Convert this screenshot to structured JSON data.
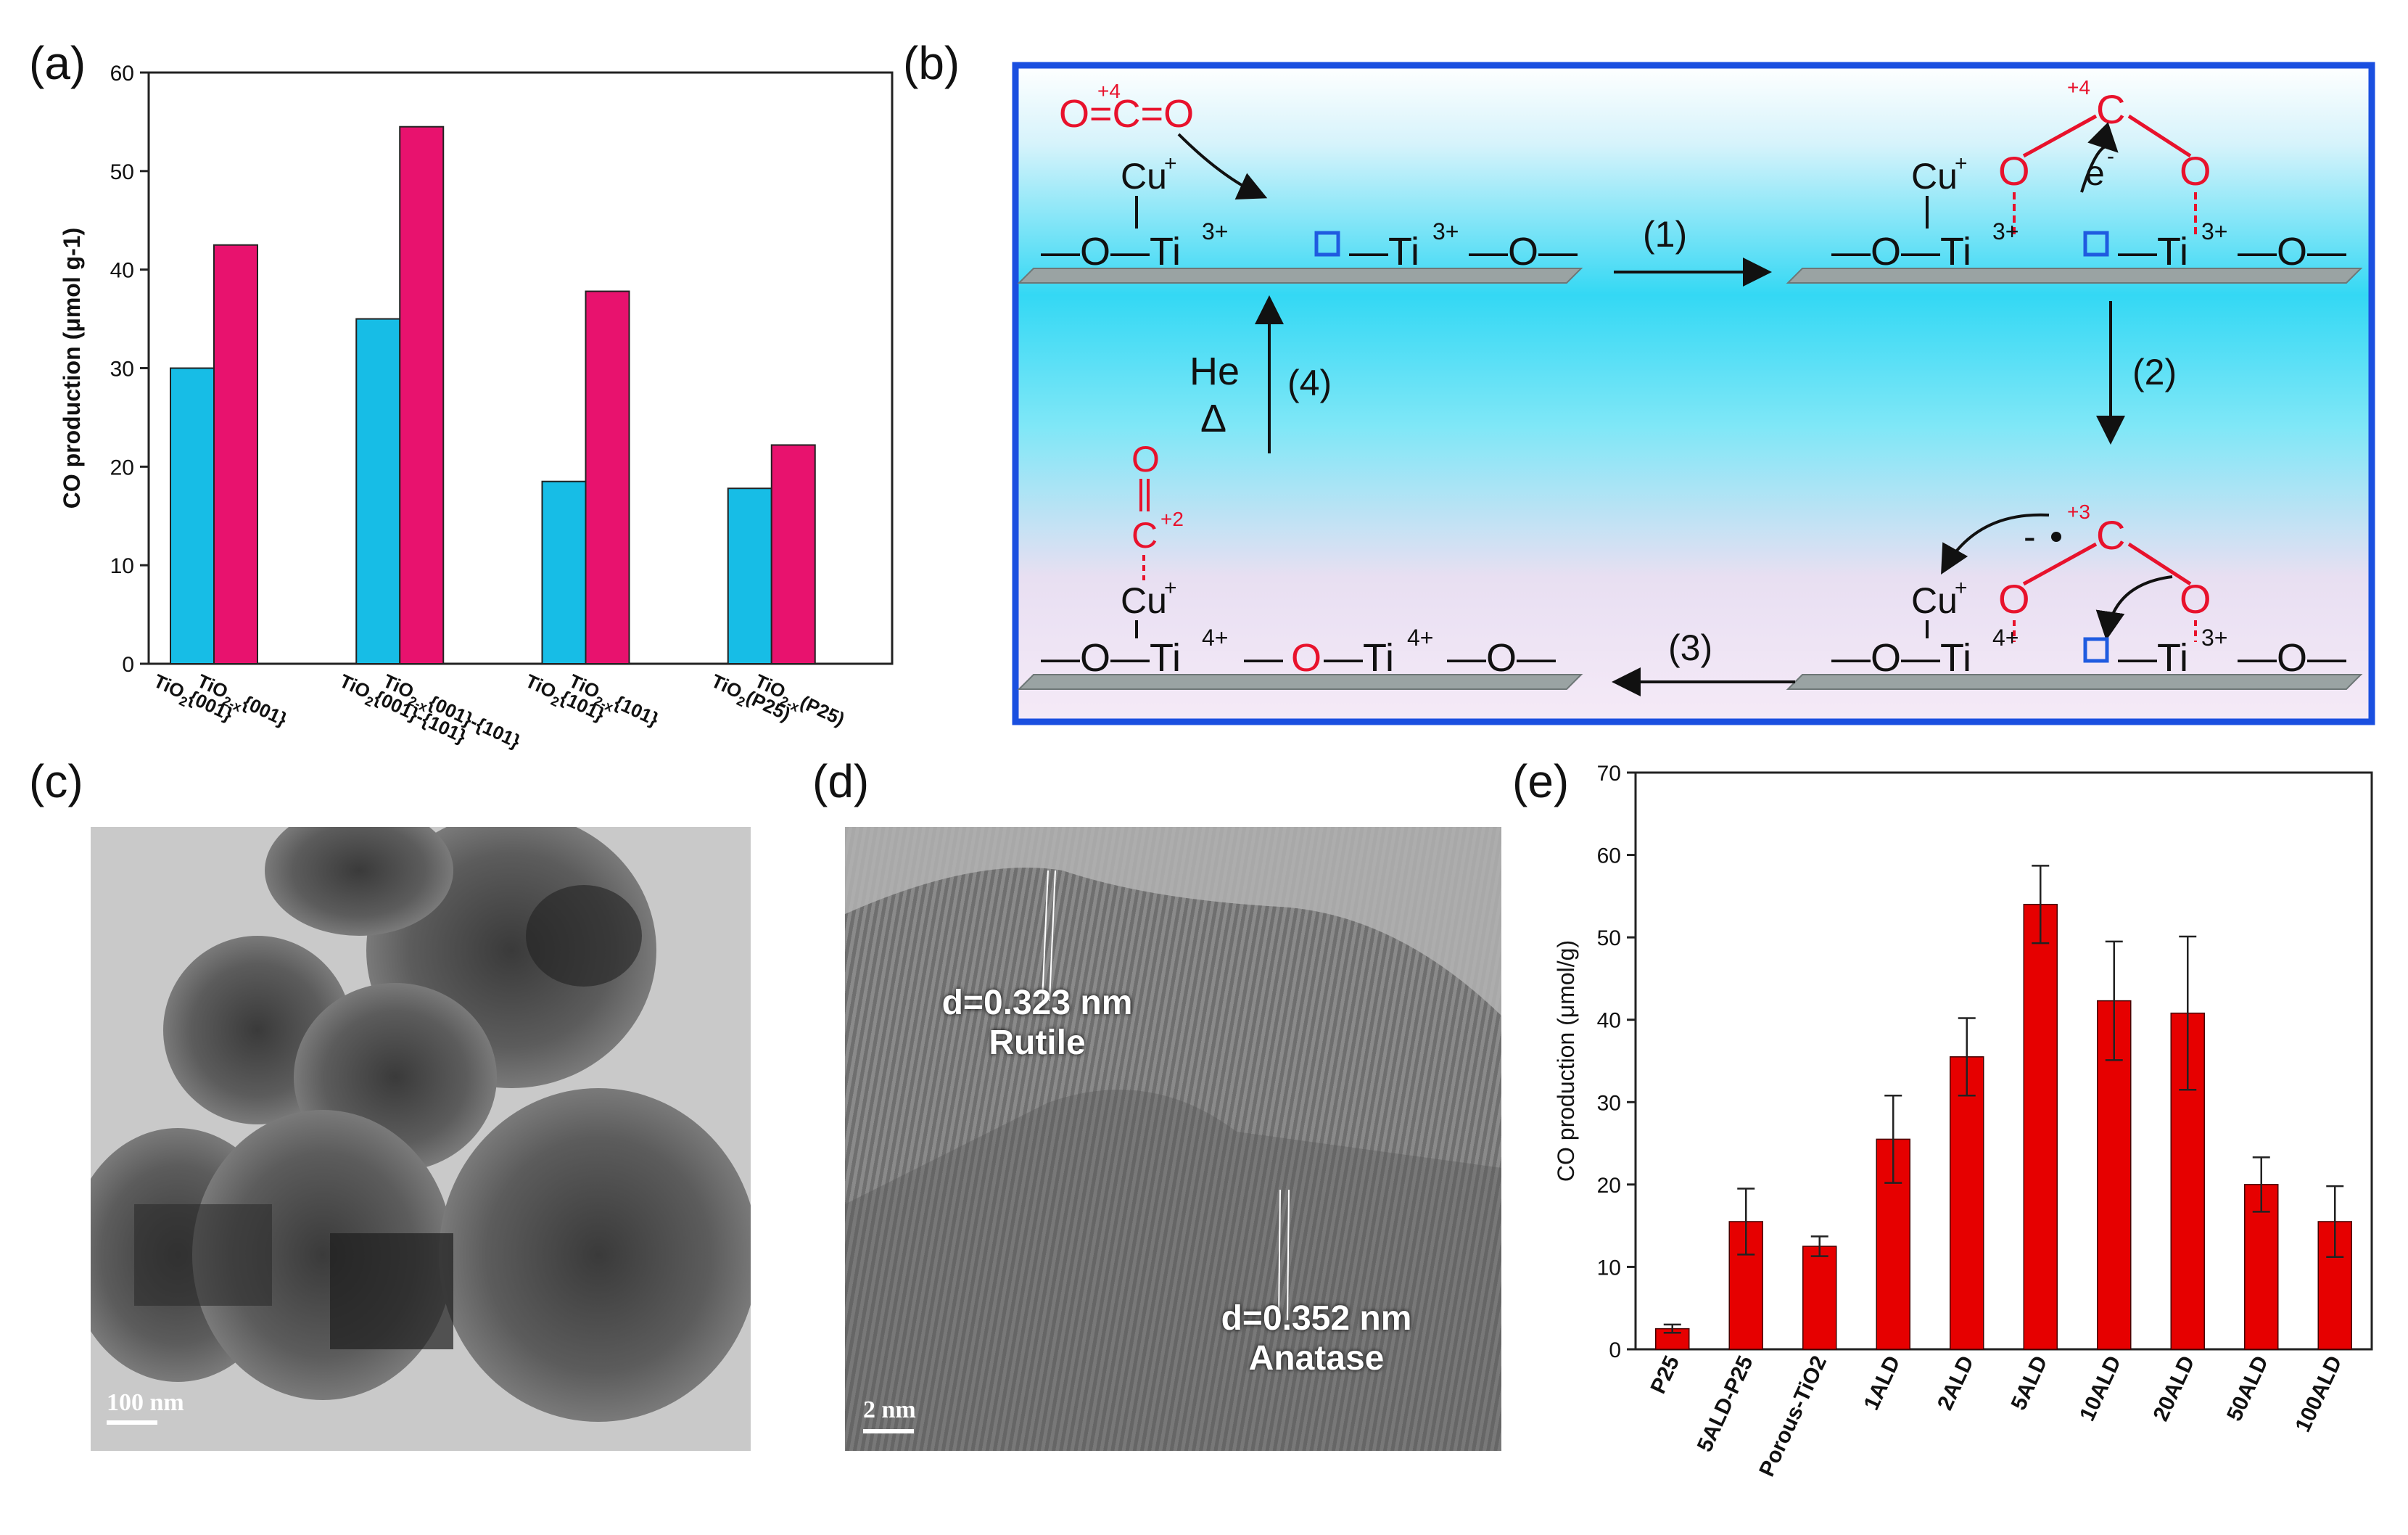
{
  "labels": {
    "a": "(a)",
    "b": "(b)",
    "c": "(c)",
    "d": "(d)",
    "e": "(e)"
  },
  "colors": {
    "cyan": "#17bde6",
    "magenta": "#e8126e",
    "red": "#e60000",
    "frame": "#1a4fe0"
  },
  "chart_data": [
    {
      "panel": "a",
      "type": "bar",
      "ylabel": "CO production (μmol g-1)",
      "ylim": [
        0,
        60
      ],
      "yticks": [
        0,
        10,
        20,
        30,
        40,
        50,
        60
      ],
      "groups": [
        {
          "bars": [
            {
              "label": "TiO2{001}",
              "value": 30.0,
              "color": "cyan"
            },
            {
              "label": "TiO2-x{001}",
              "value": 42.5,
              "color": "magenta"
            }
          ]
        },
        {
          "bars": [
            {
              "label": "TiO2{001}-{101}",
              "value": 35.0,
              "color": "cyan"
            },
            {
              "label": "TiO2-x{001}-{101}",
              "value": 54.5,
              "color": "magenta"
            }
          ]
        },
        {
          "bars": [
            {
              "label": "TiO2{101}",
              "value": 18.5,
              "color": "cyan"
            },
            {
              "label": "TiO2-x{101}",
              "value": 37.8,
              "color": "magenta"
            }
          ]
        },
        {
          "bars": [
            {
              "label": "TiO2(P25)",
              "value": 17.8,
              "color": "cyan"
            },
            {
              "label": "TiO2-x(P25)",
              "value": 22.2,
              "color": "magenta"
            }
          ]
        }
      ]
    },
    {
      "panel": "e",
      "type": "bar",
      "ylabel": "CO production (μmol/g)",
      "ylim": [
        0,
        70
      ],
      "yticks": [
        0,
        10,
        20,
        30,
        40,
        50,
        60,
        70
      ],
      "categories": [
        "P25",
        "5ALD-P25",
        "Porous-TiO2",
        "1ALD",
        "2ALD",
        "5ALD",
        "10ALD",
        "20ALD",
        "50ALD",
        "100ALD"
      ],
      "values": [
        2.5,
        15.5,
        12.5,
        25.5,
        35.5,
        54.0,
        42.3,
        40.8,
        20.0,
        15.5
      ],
      "errors": [
        0.5,
        4.0,
        1.2,
        5.3,
        4.7,
        4.7,
        7.2,
        9.3,
        3.3,
        4.3
      ]
    }
  ],
  "diagram": {
    "steps": [
      "(1)",
      "(2)",
      "(3)",
      "(4)"
    ],
    "he": "He",
    "delta": "Δ",
    "co2": "O=C=O",
    "ox_plus4": "+4",
    "ox_plus3": "+3",
    "ox_plus2": "+2",
    "cu": "Cu",
    "cu_charge": "+",
    "electron": "e",
    "e_charge": "-",
    "ti": "Ti",
    "ti3": "3+",
    "ti4": "4+",
    "o": "O",
    "c": "C",
    "dash": "—"
  },
  "tem_c": {
    "scale": "100 nm"
  },
  "tem_d": {
    "scale": "2 nm",
    "label1_line1": "d=0.323 nm",
    "label1_line2": "Rutile",
    "label2_line1": "d=0.352 nm",
    "label2_line2": "Anatase"
  }
}
